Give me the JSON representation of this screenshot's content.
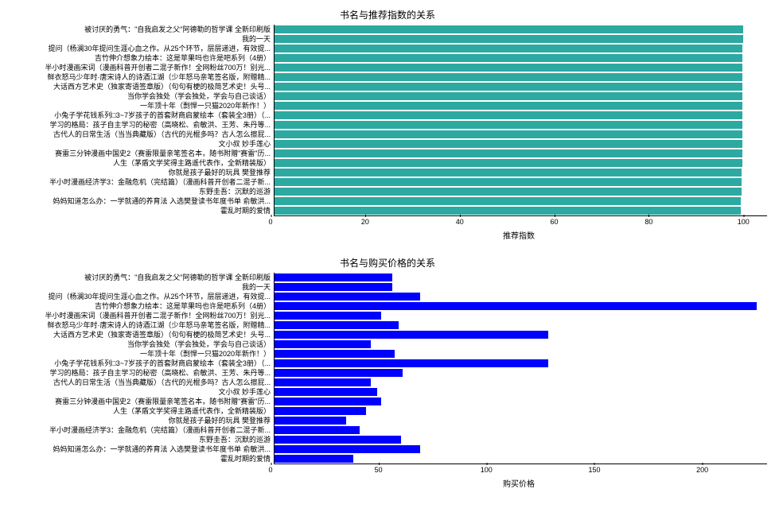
{
  "chart1": {
    "type": "bar-horizontal",
    "title": "书名与推荐指数的关系",
    "xlabel": "推荐指数",
    "bar_color": "#2ca9a1",
    "background_color": "#ffffff",
    "xlim": [
      0,
      105
    ],
    "xtick_step": 20,
    "xticks": [
      0,
      20,
      40,
      60,
      80,
      100
    ],
    "title_fontsize": 12,
    "label_fontsize": 10,
    "tick_fontsize": 9,
    "categories": [
      "被讨厌的勇气：\"自我启发之父\"阿德勒的哲学课 全新印刷版",
      "我的一天",
      "提问（杨澜30年提问生涯心血之作。从25个环节，层层递进，有效提...",
      "吉竹伸介想象力绘本：这是苹果吗也许是吧系列（4册）",
      "半小时漫画宋词（漫画科普开创者二混子新作！全网粉丝700万！别光...",
      "鲜衣怒马少年时·唐宋诗人的诗酒江湖（少年怒马亲笔签名版，附赠精...",
      "大话西方艺术史（独家寄语签章版）（句句有梗的极简艺术史！头号...",
      "当你学会独处（学会独处，学会与自己谈话）",
      "一年顶十年（剽悍一只猫2020年新作！）",
      "小兔子学花钱系列□3~7岁孩子的首套财商启蒙绘本（套装全3册）（...",
      "学习的格局：孩子自主学习的秘密（高晓松、俞敏洪、王芳、朱丹等...",
      "古代人的日常生活（当当典藏版）（古代的光棍多吗？古人怎么擦屁...",
      "文小叔 妙手莲心",
      "赛雷三分钟漫画中国史2（赛雷限量亲笔签名本，随书附赠\"赛雷\"历...",
      "人生（茅盾文学奖得主路遥代表作，全新精装版）",
      "你就是孩子最好的玩具 樊登推荐",
      "半小时漫画经济学3：金融危机（完结篇）（漫画科普开创者二混子新...",
      "东野圭吾：沉默的巡游",
      "妈妈知道怎么办：一学就通的养育法  入选樊登读书年度书单 俞敏洪...",
      "霍乱时期的爱情"
    ],
    "values": [
      99.9,
      99.9,
      99.8,
      99.8,
      99.8,
      99.8,
      99.8,
      99.8,
      99.8,
      99.8,
      99.8,
      99.8,
      99.7,
      99.7,
      99.7,
      99.6,
      99.6,
      99.5,
      99.4,
      99.4
    ]
  },
  "chart2": {
    "type": "bar-horizontal",
    "title": "书名与购买价格的关系",
    "xlabel": "购买价格",
    "bar_color": "#0000ff",
    "background_color": "#ffffff",
    "xlim": [
      0,
      230
    ],
    "xtick_step": 50,
    "xticks": [
      0,
      50,
      100,
      150,
      200
    ],
    "title_fontsize": 12,
    "label_fontsize": 10,
    "tick_fontsize": 9,
    "categories": [
      "被讨厌的勇气：\"自我启发之父\"阿德勒的哲学课 全新印刷版",
      "我的一天",
      "提问（杨澜30年提问生涯心血之作。从25个环节，层层递进，有效提...",
      "吉竹伸介想象力绘本：这是苹果吗也许是吧系列（4册）",
      "半小时漫画宋词（漫画科普开创者二混子新作！全网粉丝700万！别光...",
      "鲜衣怒马少年时·唐宋诗人的诗酒江湖（少年怒马亲笔签名版，附赠精...",
      "大话西方艺术史（独家寄语签章版）（句句有梗的极简艺术史！头号...",
      "当你学会独处（学会独处，学会与自己谈话）",
      "一年顶十年（剽悍一只猫2020年新作！）",
      "小兔子学花钱系列□3~7岁孩子的首套财商启蒙绘本（套装全3册）（...",
      "学习的格局：孩子自主学习的秘密（高晓松、俞敏洪、王芳、朱丹等...",
      "古代人的日常生活（当当典藏版）（古代的光棍多吗？古人怎么擦屁...",
      "文小叔 妙手莲心",
      "赛雷三分钟漫画中国史2（赛雷限量亲笔签名本，随书附赠\"赛雷\"历...",
      "人生（茅盾文学奖得主路遥代表作，全新精装版）",
      "你就是孩子最好的玩具 樊登推荐",
      "半小时漫画经济学3：金融危机（完结篇）（漫画科普开创者二混子新...",
      "东野圭吾：沉默的巡游",
      "妈妈知道怎么办：一学就通的养育法  入选樊登读书年度书单 俞敏洪...",
      "霍乱时期的爱情"
    ],
    "values": [
      55,
      55,
      68,
      225,
      49.9,
      58,
      128,
      45,
      56,
      128,
      59.8,
      45,
      48,
      49.9,
      42.8,
      33.6,
      39.9,
      59,
      68,
      36.8
    ]
  }
}
